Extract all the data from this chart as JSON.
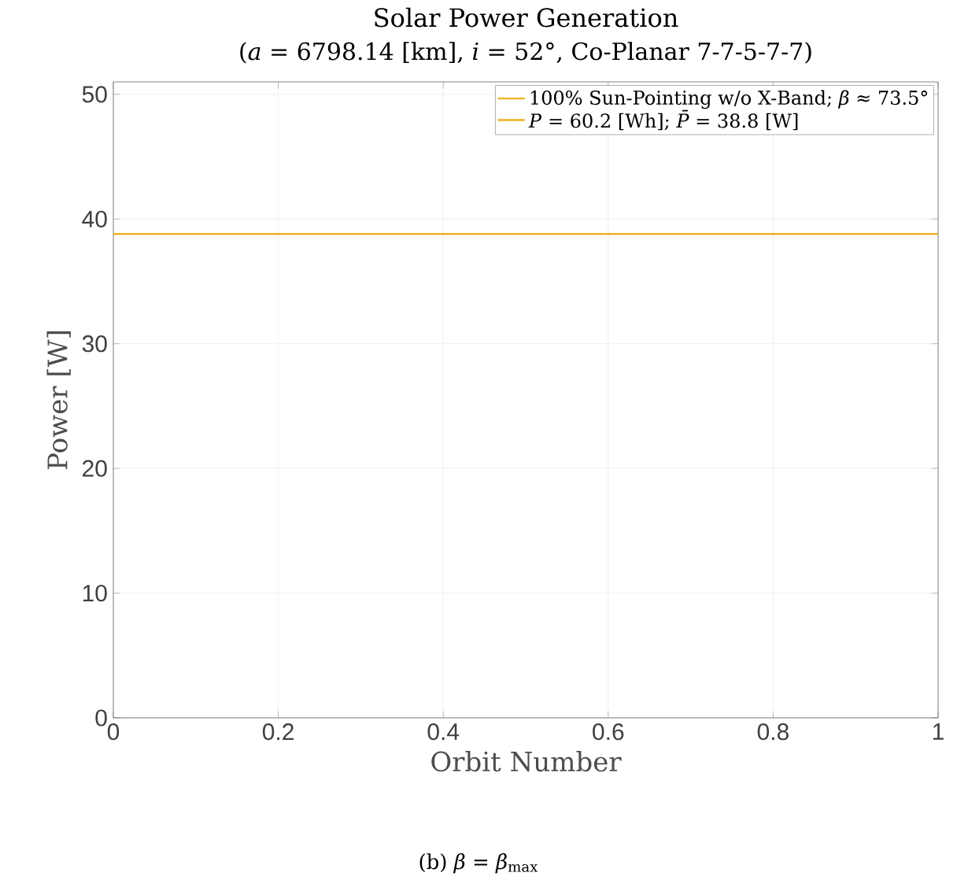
{
  "chart_data": {
    "type": "line",
    "title": "Solar Power Generation",
    "subtitle": "(*a* = 6798.14 [km], *i* = 52°, Co-Planar 7-7-5-7-7)",
    "xlabel": "Orbit Number",
    "ylabel": "Power [W]",
    "series": [
      {
        "name": "100% Sun-Pointing w/o X-Band; *β* ≈ 73.5°",
        "color": "#edb120",
        "x": [
          0,
          1
        ],
        "values": [
          38.8,
          38.8
        ]
      }
    ],
    "xlim": [
      0,
      1
    ],
    "ylim": [
      0,
      51
    ],
    "xticks": [
      0,
      0.2,
      0.4,
      0.6,
      0.8,
      1
    ],
    "yticks": [
      0,
      10,
      20,
      30,
      40,
      50
    ],
    "grid": true,
    "legend": "top right",
    "marker": "none",
    "line_style": "solid",
    "annotations": [
      "*P* = 60.2 [Wh]; *P̄* = 38.8 [W]",
      "(b) *β* = *β*$_{max}$"
    ]
  }
}
